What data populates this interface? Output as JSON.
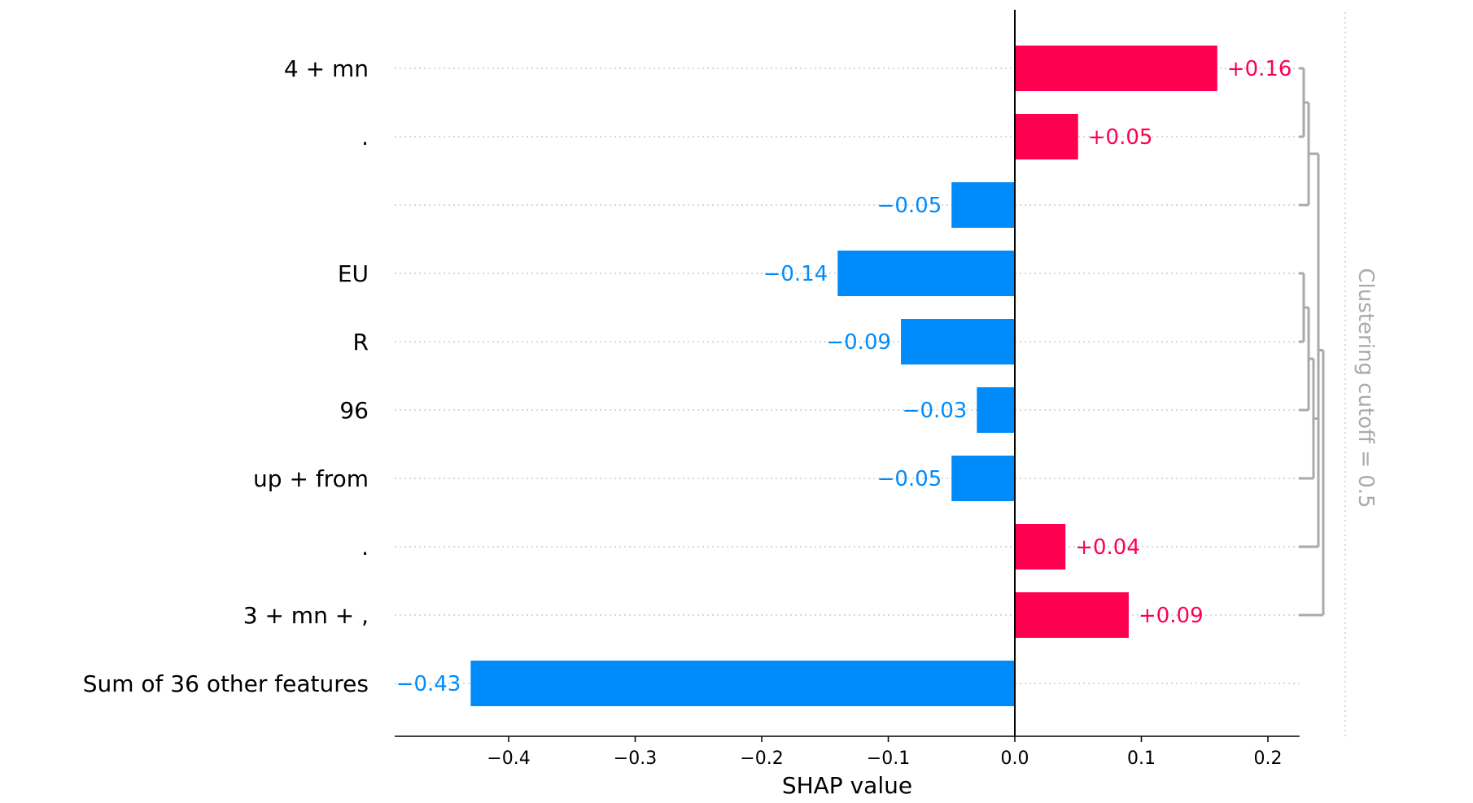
{
  "chart_data": {
    "type": "bar",
    "orientation": "horizontal",
    "categories": [
      "4 + mn",
      ".",
      "",
      "EU",
      "R",
      "96",
      "up + from",
      ".",
      "3 + mn + ,",
      "Sum of 36 other features"
    ],
    "values": [
      0.16,
      0.05,
      -0.05,
      -0.14,
      -0.09,
      -0.03,
      -0.05,
      0.04,
      0.09,
      -0.43
    ],
    "value_labels": [
      "+0.16",
      "+0.05",
      "−0.05",
      "−0.14",
      "−0.09",
      "−0.03",
      "−0.05",
      "+0.04",
      "+0.09",
      "−0.43"
    ],
    "xlabel": "SHAP value",
    "xlim": [
      -0.49,
      0.225
    ],
    "xticks": [
      -0.4,
      -0.3,
      -0.2,
      -0.1,
      0.0,
      0.1,
      0.2
    ],
    "xtick_labels": [
      "−0.4",
      "−0.3",
      "−0.2",
      "−0.1",
      "0.0",
      "0.1",
      "0.2"
    ],
    "colors": {
      "positive": "#ff0051",
      "negative": "#008bfb",
      "dendrogram": "#aaaaaa",
      "grid": "#cccccc"
    },
    "clustering_label": "Clustering cutoff = 0.5",
    "grid": "dotted-horizontal"
  }
}
